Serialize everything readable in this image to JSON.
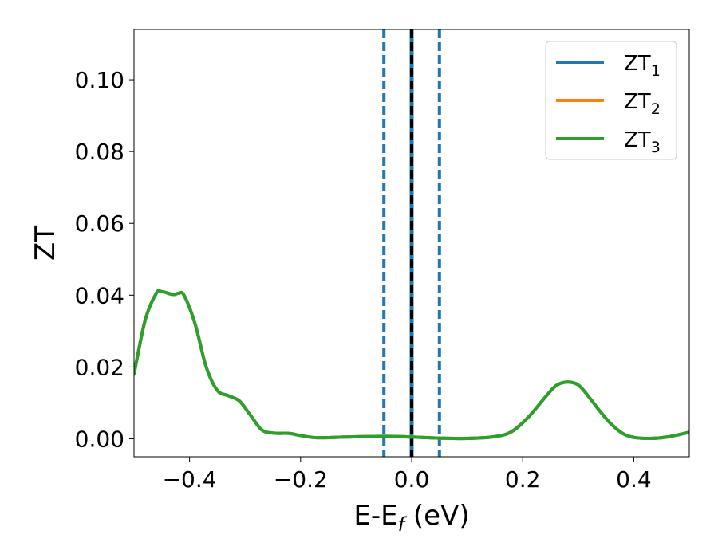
{
  "chart_data": {
    "type": "line",
    "xlabel": "E-E",
    "xlabel_sub": "f",
    "xlabel_unit": " (eV)",
    "ylabel": "ZT",
    "xlim": [
      -0.5,
      0.5
    ],
    "ylim": [
      -0.005,
      0.114
    ],
    "xticks": [
      -0.4,
      -0.2,
      0.0,
      0.2,
      0.4
    ],
    "xtick_labels": [
      "−0.4",
      "−0.2",
      "0.0",
      "0.2",
      "0.4"
    ],
    "yticks": [
      0.0,
      0.02,
      0.04,
      0.06,
      0.08,
      0.1
    ],
    "ytick_labels": [
      "0.00",
      "0.02",
      "0.04",
      "0.06",
      "0.08",
      "0.10"
    ],
    "grid": false,
    "legend_position": "top-right",
    "colors": {
      "ZT1": "#1f77b4",
      "ZT2": "#ff7f0e",
      "ZT3": "#2ca02c",
      "fermi": "#000000"
    },
    "vertical_lines": [
      {
        "x": -0.05,
        "style": "dashed",
        "color": "#1f77b4"
      },
      {
        "x": 0.0,
        "style": "solid",
        "color": "#1f77b4"
      },
      {
        "x": 0.0,
        "style": "dashed",
        "color": "#000000"
      },
      {
        "x": 0.05,
        "style": "dashed",
        "color": "#1f77b4"
      }
    ],
    "series": [
      {
        "name": "ZT",
        "sub": "1",
        "color": "#1f77b4",
        "x": [
          -0.5,
          -0.48,
          -0.46,
          -0.45,
          -0.43,
          -0.42,
          -0.41,
          -0.39,
          -0.37,
          -0.35,
          -0.33,
          -0.31,
          -0.29,
          -0.27,
          -0.25,
          -0.22,
          -0.2,
          -0.17,
          -0.12,
          -0.05,
          0.0,
          0.05,
          0.1,
          0.15,
          0.18,
          0.21,
          0.24,
          0.26,
          0.28,
          0.3,
          0.32,
          0.34,
          0.36,
          0.38,
          0.4,
          0.43,
          0.46,
          0.5
        ],
        "y": [
          0.018,
          0.033,
          0.0405,
          0.041,
          0.0402,
          0.0405,
          0.04,
          0.032,
          0.02,
          0.0135,
          0.012,
          0.0105,
          0.0065,
          0.0025,
          0.0016,
          0.0015,
          0.0009,
          0.0003,
          0.0005,
          0.0007,
          0.0005,
          0.0002,
          0.0001,
          0.0006,
          0.002,
          0.006,
          0.0115,
          0.0148,
          0.0158,
          0.015,
          0.0115,
          0.0075,
          0.004,
          0.0015,
          0.0004,
          0.0001,
          0.0005,
          0.0018
        ]
      },
      {
        "name": "ZT",
        "sub": "2",
        "color": "#ff7f0e",
        "x": [
          -0.5,
          -0.48,
          -0.46,
          -0.45,
          -0.43,
          -0.42,
          -0.41,
          -0.39,
          -0.37,
          -0.35,
          -0.33,
          -0.31,
          -0.29,
          -0.27,
          -0.25,
          -0.22,
          -0.2,
          -0.17,
          -0.12,
          -0.05,
          0.0,
          0.05,
          0.1,
          0.15,
          0.18,
          0.21,
          0.24,
          0.26,
          0.28,
          0.3,
          0.32,
          0.34,
          0.36,
          0.38,
          0.4,
          0.43,
          0.46,
          0.5
        ],
        "y": [
          0.018,
          0.033,
          0.0405,
          0.041,
          0.0402,
          0.0405,
          0.04,
          0.032,
          0.02,
          0.0135,
          0.012,
          0.0105,
          0.0065,
          0.0025,
          0.0016,
          0.0015,
          0.0009,
          0.0003,
          0.0005,
          0.0007,
          0.0005,
          0.0002,
          0.0001,
          0.0006,
          0.002,
          0.006,
          0.0115,
          0.0148,
          0.0158,
          0.015,
          0.0115,
          0.0075,
          0.004,
          0.0015,
          0.0004,
          0.0001,
          0.0005,
          0.0018
        ]
      },
      {
        "name": "ZT",
        "sub": "3",
        "color": "#2ca02c",
        "x": [
          -0.5,
          -0.48,
          -0.46,
          -0.45,
          -0.43,
          -0.42,
          -0.41,
          -0.39,
          -0.37,
          -0.35,
          -0.33,
          -0.31,
          -0.29,
          -0.27,
          -0.25,
          -0.22,
          -0.2,
          -0.17,
          -0.12,
          -0.05,
          0.0,
          0.05,
          0.1,
          0.15,
          0.18,
          0.21,
          0.24,
          0.26,
          0.28,
          0.3,
          0.32,
          0.34,
          0.36,
          0.38,
          0.4,
          0.43,
          0.46,
          0.5
        ],
        "y": [
          0.018,
          0.033,
          0.0405,
          0.041,
          0.0402,
          0.0405,
          0.04,
          0.032,
          0.02,
          0.0135,
          0.012,
          0.0105,
          0.0065,
          0.0025,
          0.0016,
          0.0015,
          0.0009,
          0.0003,
          0.0005,
          0.0007,
          0.0005,
          0.0002,
          0.0001,
          0.0006,
          0.002,
          0.006,
          0.0115,
          0.0148,
          0.0158,
          0.015,
          0.0115,
          0.0075,
          0.004,
          0.0015,
          0.0004,
          0.0001,
          0.0005,
          0.0018
        ]
      }
    ]
  }
}
